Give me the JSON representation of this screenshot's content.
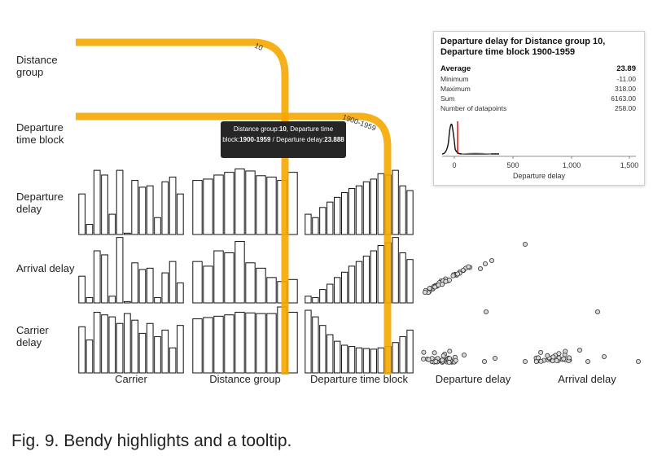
{
  "rows": [
    "Distance\ngroup",
    "Departure\ntime block",
    "Departure\ndelay",
    "Arrival delay",
    "Carrier\ndelay"
  ],
  "columns": [
    "Carrier",
    "Distance group",
    "Departure time block",
    "Departure delay",
    "Arrival delay"
  ],
  "highlight": {
    "distance_label": "10",
    "time_label": "1900-1959",
    "color": "#f5a700"
  },
  "tooltip": {
    "prefix1": "Distance group:",
    "value1": "10",
    "sep1": ", Departure time block:",
    "value2": "1900-1959",
    "sep2": " / Departure delay:",
    "value3": "23.888"
  },
  "panel": {
    "title": "Departure delay for Distance group 10, Departure time block 1900-1959",
    "stats": [
      {
        "label": "Average",
        "value": "23.89"
      },
      {
        "label": "Minimum",
        "value": "-11.00"
      },
      {
        "label": "Maximum",
        "value": "318.00"
      },
      {
        "label": "Sum",
        "value": "6163.00"
      },
      {
        "label": "Number of datapoints",
        "value": "258.00"
      }
    ],
    "axis_ticks": [
      "0",
      "500",
      "1,000",
      "1,500"
    ],
    "axis_label": "Departure delay"
  },
  "chart_data": {
    "type": "bar",
    "bar_rows": {
      "carrier": {
        "departure_delay": [
          0.6,
          0.15,
          0.95,
          0.88,
          0.3,
          0.95,
          0.02,
          0.8,
          0.7,
          0.72,
          0.25,
          0.78,
          0.85,
          0.6
        ],
        "arrival_delay": [
          0.4,
          0.08,
          0.78,
          0.72,
          0.1,
          0.98,
          0.02,
          0.6,
          0.5,
          0.52,
          0.08,
          0.45,
          0.62,
          0.3
        ],
        "carrier_delay": [
          0.7,
          0.5,
          0.92,
          0.88,
          0.85,
          0.75,
          0.9,
          0.8,
          0.6,
          0.75,
          0.55,
          0.65,
          0.38,
          0.72
        ]
      },
      "distance_group": {
        "departure_delay": [
          0.8,
          0.82,
          0.88,
          0.92,
          0.97,
          0.94,
          0.87,
          0.85,
          0.8,
          0.92
        ],
        "arrival_delay": [
          0.62,
          0.55,
          0.78,
          0.75,
          0.92,
          0.6,
          0.52,
          0.38,
          0.32,
          0.35
        ],
        "carrier_delay": [
          0.82,
          0.84,
          0.86,
          0.88,
          0.92,
          0.91,
          0.9,
          0.9,
          1.0,
          0.92
        ]
      },
      "departure_time_block": {
        "departure_delay": [
          0.3,
          0.25,
          0.4,
          0.48,
          0.55,
          0.62,
          0.68,
          0.72,
          0.78,
          0.82,
          0.9,
          0.88,
          0.95,
          0.72,
          0.65
        ],
        "arrival_delay": [
          0.1,
          0.08,
          0.2,
          0.28,
          0.38,
          0.46,
          0.55,
          0.62,
          0.7,
          0.78,
          0.86,
          0.9,
          0.98,
          0.75,
          0.65
        ],
        "carrier_delay": [
          0.95,
          0.85,
          0.72,
          0.58,
          0.48,
          0.42,
          0.4,
          0.38,
          0.37,
          0.36,
          0.38,
          0.4,
          0.46,
          0.55,
          0.65
        ]
      }
    },
    "histogram": {
      "x_range": [
        -100,
        1700
      ],
      "peak_x": 0,
      "mean_line_x": 23.89
    }
  },
  "caption": "Fig. 9. Bendy highlights and a tooltip."
}
